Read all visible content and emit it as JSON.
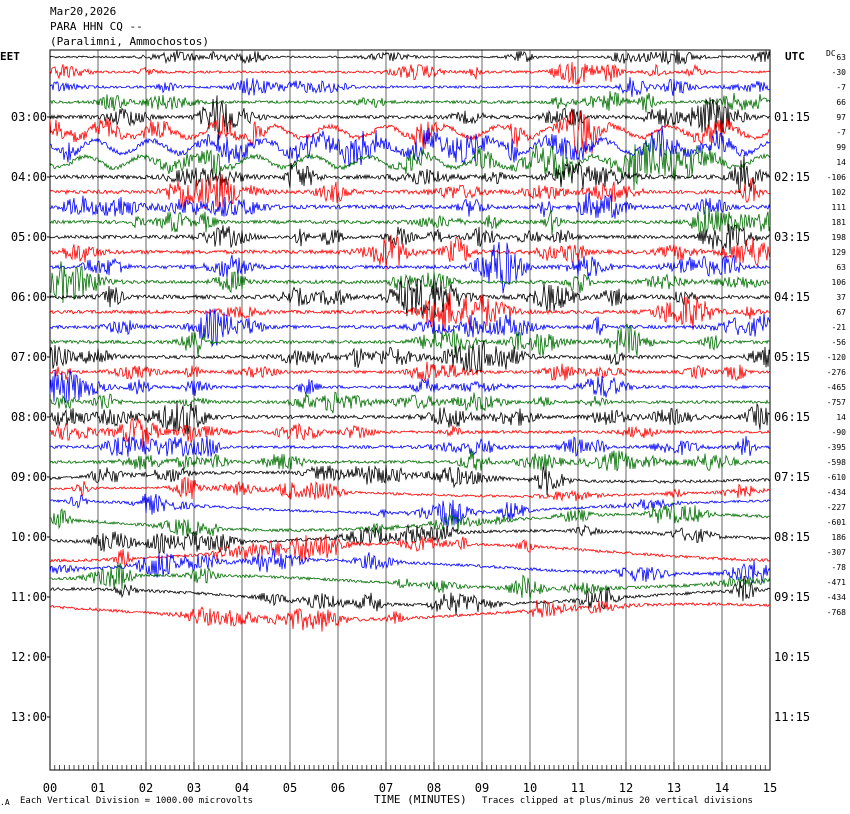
{
  "header": {
    "date": "Mar20,2026",
    "station": "PARA HHN CQ --",
    "location": "(Paralimni, Ammochostos)"
  },
  "left_zone_label": "EET",
  "right_zone_label": "UTC",
  "dc_label": "DC",
  "footer": {
    "corner": ".A",
    "scale_note": "Each Vertical Division = 1000.00 microvolts",
    "x_title": "TIME (MINUTES)",
    "clip_note": "Traces clipped at plus/minus 20 vertical divisions"
  },
  "chart_data": {
    "type": "line",
    "title": "PARA HHN CQ --",
    "subtitle": "(Paralimni, Ammochostos)",
    "xlabel": "TIME (MINUTES)",
    "xlim": [
      0,
      15
    ],
    "x_ticks": [
      "00",
      "01",
      "02",
      "03",
      "04",
      "05",
      "06",
      "07",
      "08",
      "09",
      "10",
      "11",
      "12",
      "13",
      "14",
      "15"
    ],
    "left_time_labels": [
      "03:00",
      "04:00",
      "05:00",
      "06:00",
      "07:00",
      "08:00",
      "09:00",
      "10:00",
      "11:00",
      "12:00",
      "13:00"
    ],
    "right_time_labels": [
      "01:15",
      "02:15",
      "03:15",
      "04:15",
      "05:15",
      "06:15",
      "07:15",
      "08:15",
      "09:15",
      "10:15",
      "11:15"
    ],
    "trace_colors": [
      "#000000",
      "#ff0000",
      "#0000ff",
      "#007000"
    ],
    "dc_offsets": [
      63,
      -30,
      -7,
      66,
      97,
      -7,
      99,
      14,
      -106,
      102,
      111,
      181,
      198,
      129,
      63,
      106,
      37,
      67,
      -21,
      -56,
      -120,
      -276,
      -465,
      -757,
      14,
      -90,
      -395,
      -598,
      -610,
      -434,
      -227,
      -601,
      186,
      -307,
      -78,
      -471,
      -434,
      -768
    ],
    "trace_count": 38,
    "active_amplitude": [
      0.4,
      0.5,
      0.5,
      0.6,
      0.7,
      0.9,
      1.0,
      0.9,
      0.8,
      0.8,
      0.8,
      0.7,
      0.7,
      0.8,
      0.7,
      0.7,
      0.8,
      0.7,
      0.7,
      0.7,
      0.7,
      0.6,
      0.6,
      0.6,
      0.7,
      0.6,
      0.6,
      0.6,
      0.6,
      0.5,
      0.5,
      0.6,
      0.6,
      0.6,
      0.6,
      0.6,
      0.6,
      0.6
    ]
  }
}
